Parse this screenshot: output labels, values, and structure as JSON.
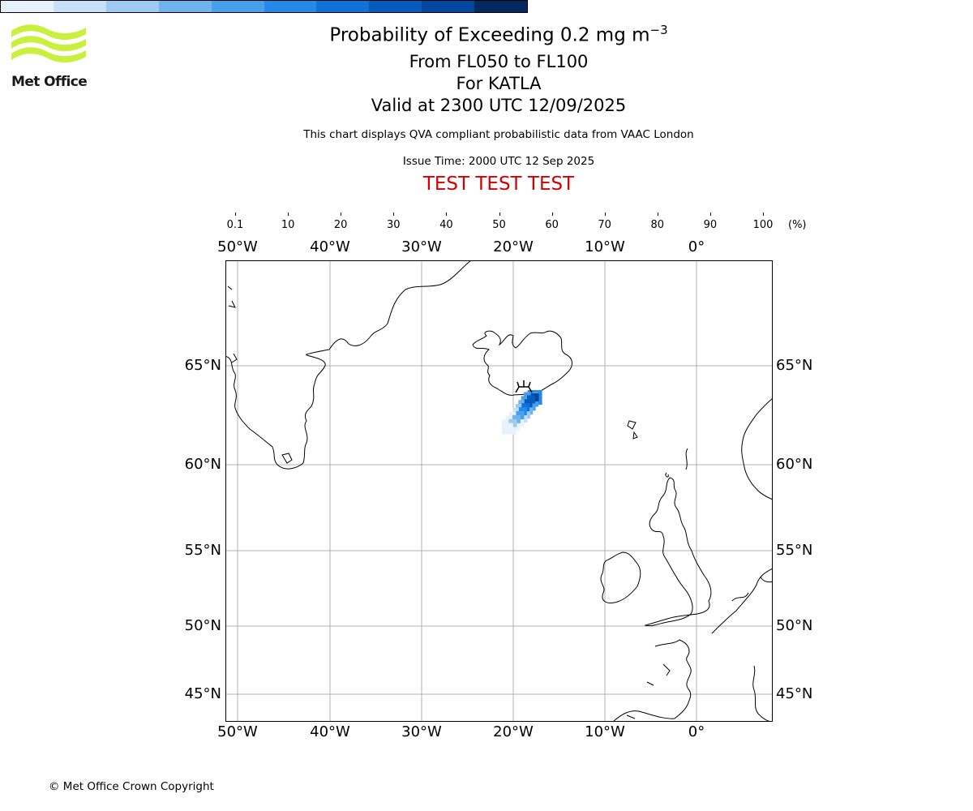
{
  "branding": {
    "logo_text": "Met Office",
    "logo_color": "#c8f03c"
  },
  "header": {
    "title_main": "Probability of Exceeding 0.2 mg m",
    "title_superscript": "−3",
    "level_range": "From FL050 to FL100",
    "volcano": "For KATLA",
    "valid_time": "Valid at 2300 UTC 12/09/2025",
    "description": "This chart displays QVA compliant probabilistic data from VAAC London",
    "issue_time": "Issue Time: 2000 UTC 12 Sep 2025",
    "test_banner": "TEST TEST TEST",
    "test_banner_color": "#d40000"
  },
  "colorbar": {
    "tick_labels": [
      "0.1",
      "10",
      "20",
      "30",
      "40",
      "50",
      "60",
      "70",
      "80",
      "90",
      "100"
    ],
    "unit": "(%)",
    "colors": [
      "#e8f2fd",
      "#c6e0f8",
      "#9ccaf3",
      "#6fb3ee",
      "#47a0ec",
      "#2489e8",
      "#0f72d8",
      "#065cbd",
      "#0447a0",
      "#032a5e"
    ]
  },
  "map": {
    "longitude_labels": [
      "50°W",
      "40°W",
      "30°W",
      "20°W",
      "10°W",
      "0°"
    ],
    "latitude_labels": [
      "65°N",
      "60°N",
      "55°N",
      "50°N",
      "45°N"
    ],
    "gridline_color": "#b0b0b0",
    "volcano_marker": "volcano-icon",
    "ash_probability_cells": [
      {
        "lon": -17.6,
        "lat": 63.4,
        "pct": 85
      },
      {
        "lon": -18.0,
        "lat": 63.3,
        "pct": 75
      },
      {
        "lon": -18.3,
        "lat": 63.1,
        "pct": 70
      },
      {
        "lon": -18.6,
        "lat": 62.9,
        "pct": 60
      },
      {
        "lon": -18.9,
        "lat": 62.7,
        "pct": 55
      },
      {
        "lon": -19.2,
        "lat": 62.5,
        "pct": 45
      },
      {
        "lon": -19.6,
        "lat": 62.3,
        "pct": 35
      },
      {
        "lon": -20.0,
        "lat": 62.1,
        "pct": 20
      },
      {
        "lon": -20.4,
        "lat": 61.9,
        "pct": 8
      }
    ]
  },
  "footer": {
    "copyright": "© Met Office Crown Copyright"
  }
}
